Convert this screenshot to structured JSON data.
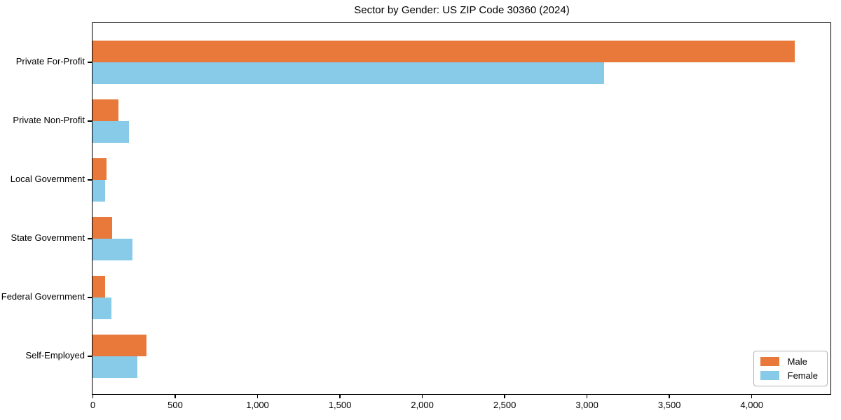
{
  "chart_data": {
    "type": "bar",
    "orientation": "horizontal",
    "title": "Sector by Gender: US ZIP Code 30360 (2024)",
    "categories": [
      "Private For-Profit",
      "Private Non-Profit",
      "Local Government",
      "State Government",
      "Federal Government",
      "Self-Employed"
    ],
    "series": [
      {
        "name": "Male",
        "color": "#e8793a",
        "values": [
          4263,
          157,
          85,
          119,
          76,
          327
        ]
      },
      {
        "name": "Female",
        "color": "#87cbe8",
        "values": [
          3104,
          221,
          76,
          242,
          115,
          272
        ]
      }
    ],
    "xlim": [
      0,
      4480
    ],
    "xticks": [
      0,
      500,
      1000,
      1500,
      2000,
      2500,
      3000,
      3500,
      4000
    ],
    "xtick_labels": [
      "0",
      "500",
      "1,000",
      "1,500",
      "2,000",
      "2,500",
      "3,000",
      "3,500",
      "4,000"
    ],
    "xlabel": "",
    "ylabel": "",
    "grid": false,
    "legend_position": "lower right",
    "background_color": "#ffffff",
    "axis_color": "#000000"
  }
}
